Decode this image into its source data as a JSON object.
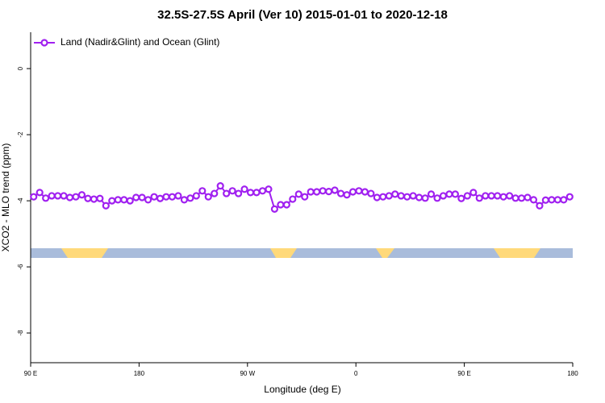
{
  "chart_data": {
    "type": "line",
    "title": "32.5S-27.5S April (Ver 10)   2015-01-01 to 2020-12-18",
    "x_label": "Longitude (deg E)",
    "y_label": "XCO2 - MLO trend (ppm)",
    "xlim": [
      90,
      540
    ],
    "ylim": [
      -8.9,
      1.1
    ],
    "xticks": [
      {
        "value": 90,
        "label": "90 E"
      },
      180,
      {
        "value": 270,
        "label": "90 W"
      },
      {
        "value": 360,
        "label": "0"
      },
      {
        "value": 450,
        "label": "90 E"
      },
      {
        "value": 540,
        "label": "180"
      }
    ],
    "yticks": [
      0,
      -2,
      -4,
      -6,
      -8
    ],
    "legend": "top-left",
    "x": [
      92.5,
      97.5,
      102.5,
      107.5,
      112.5,
      117.5,
      122.5,
      127.5,
      132.5,
      137.5,
      142.5,
      147.5,
      152.5,
      157.5,
      162.5,
      167.5,
      172.5,
      177.5,
      182.5,
      187.5,
      192.5,
      197.5,
      202.5,
      207.5,
      212.5,
      217.5,
      222.5,
      227.5,
      232.5,
      237.5,
      242.5,
      247.5,
      252.5,
      257.5,
      262.5,
      267.5,
      272.5,
      277.5,
      282.5,
      287.5,
      292.5,
      297.5,
      302.5,
      307.5,
      312.5,
      317.5,
      322.5,
      327.5,
      332.5,
      337.5,
      342.5,
      347.5,
      352.5,
      357.5,
      362.5,
      367.5,
      372.5,
      377.5,
      382.5,
      387.5,
      392.5,
      397.5,
      402.5,
      407.5,
      412.5,
      417.5,
      422.5,
      427.5,
      432.5,
      437.5,
      442.5,
      447.5,
      452.5,
      457.5,
      462.5,
      467.5,
      472.5,
      477.5,
      482.5,
      487.5,
      492.5,
      497.5,
      502.5,
      507.5,
      512.5,
      517.5,
      522.5,
      527.5,
      532.5,
      537.5
    ],
    "series": [
      {
        "name": "Land (Nadir&Glint) and Ocean (Glint)",
        "color": "#a020f0",
        "values": [
          -3.88,
          -3.75,
          -3.92,
          -3.85,
          -3.85,
          -3.85,
          -3.9,
          -3.88,
          -3.82,
          -3.93,
          -3.95,
          -3.93,
          -4.15,
          -4.0,
          -3.97,
          -3.97,
          -4.0,
          -3.9,
          -3.9,
          -3.97,
          -3.88,
          -3.93,
          -3.88,
          -3.88,
          -3.85,
          -3.97,
          -3.92,
          -3.85,
          -3.7,
          -3.88,
          -3.78,
          -3.55,
          -3.78,
          -3.7,
          -3.78,
          -3.65,
          -3.75,
          -3.75,
          -3.7,
          -3.65,
          -4.25,
          -4.12,
          -4.12,
          -3.95,
          -3.8,
          -3.88,
          -3.73,
          -3.73,
          -3.7,
          -3.72,
          -3.68,
          -3.78,
          -3.82,
          -3.73,
          -3.7,
          -3.73,
          -3.78,
          -3.9,
          -3.88,
          -3.85,
          -3.8,
          -3.85,
          -3.88,
          -3.85,
          -3.9,
          -3.92,
          -3.8,
          -3.92,
          -3.85,
          -3.8,
          -3.8,
          -3.93,
          -3.85,
          -3.75,
          -3.92,
          -3.85,
          -3.85,
          -3.85,
          -3.88,
          -3.85,
          -3.92,
          -3.92,
          -3.9,
          -3.97,
          -4.15,
          -3.98,
          -3.97,
          -3.97,
          -3.97,
          -3.88
        ]
      }
    ]
  }
}
